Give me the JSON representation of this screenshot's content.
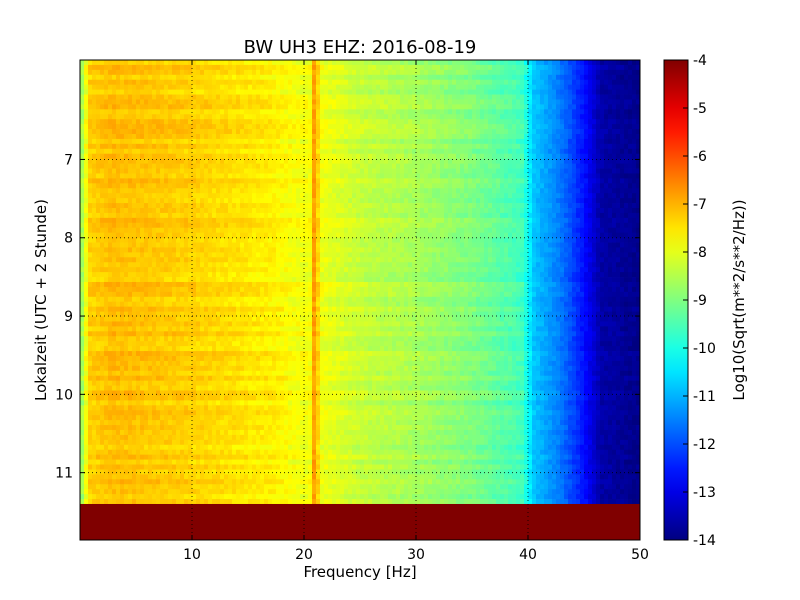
{
  "chart_data": {
    "type": "heatmap",
    "title": "BW UH3 EHZ: 2016-08-19",
    "xlabel": "Frequency [Hz]",
    "ylabel": "Lokalzeit (UTC + 2 Stunde)",
    "xlim": [
      0,
      50
    ],
    "ylim": [
      5.73,
      11.86
    ],
    "y_inverted": true,
    "x_ticks": [
      10,
      20,
      30,
      40,
      50
    ],
    "y_ticks": [
      7,
      8,
      9,
      10,
      11
    ],
    "grid": true,
    "colormap": "jet",
    "colorbar": {
      "label": "Log10(Sqrt(m**2/s**2/Hz))",
      "range": [
        -14,
        -4
      ],
      "ticks": [
        -4,
        -5,
        -6,
        -7,
        -8,
        -9,
        -10,
        -11,
        -12,
        -13,
        -14
      ]
    },
    "data_end_time": 11.4,
    "after_data_value": -4,
    "spectrum_profile": [
      {
        "freq": 0.2,
        "value": -8.6
      },
      {
        "freq": 0.8,
        "value": -7.3
      },
      {
        "freq": 3,
        "value": -7.1
      },
      {
        "freq": 10,
        "value": -7.3
      },
      {
        "freq": 17,
        "value": -7.6
      },
      {
        "freq": 19,
        "value": -7.8
      },
      {
        "freq": 20.5,
        "value": -7.9
      },
      {
        "freq": 21,
        "value": -6.8
      },
      {
        "freq": 21.5,
        "value": -7.9
      },
      {
        "freq": 25,
        "value": -8.3
      },
      {
        "freq": 30,
        "value": -8.6
      },
      {
        "freq": 35,
        "value": -9.0
      },
      {
        "freq": 39.5,
        "value": -9.6
      },
      {
        "freq": 40.5,
        "value": -10.8
      },
      {
        "freq": 43,
        "value": -11.6
      },
      {
        "freq": 45,
        "value": -12.6
      },
      {
        "freq": 46.5,
        "value": -13.6
      },
      {
        "freq": 50,
        "value": -13.9
      }
    ],
    "tremor_line": {
      "freq": 21.0,
      "value": -6.8
    }
  }
}
